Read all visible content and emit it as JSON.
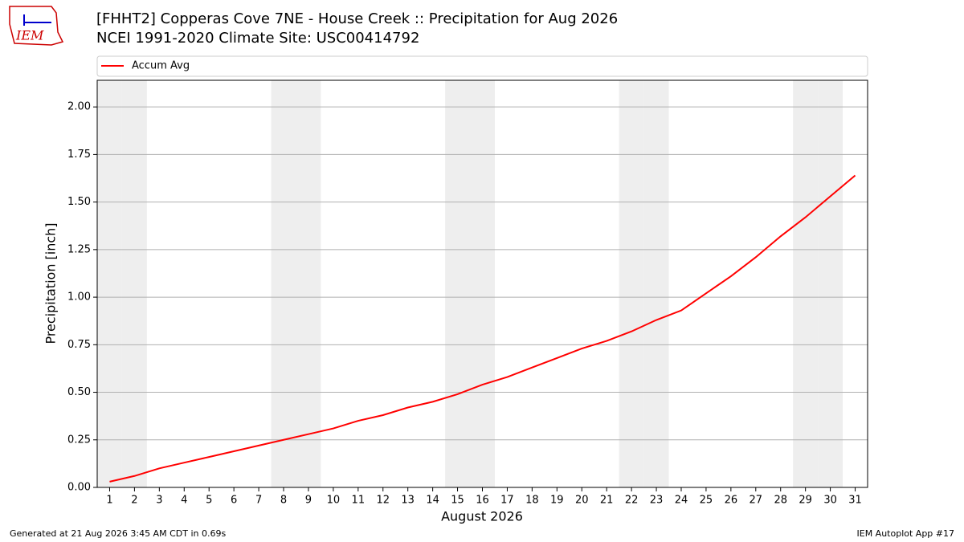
{
  "logo_text": "IEM",
  "footer_left": "Generated at 21 Aug 2026 3:45 AM CDT in 0.69s",
  "footer_right": "IEM Autoplot App #17",
  "chart_data": {
    "type": "line",
    "title": "[FHHT2] Copperas Cove 7NE - House Creek :: Precipitation for Aug 2026",
    "subtitle": "NCEI 1991-2020 Climate Site: USC00414792",
    "xlabel": "August 2026",
    "ylabel": "Precipitation [inch]",
    "x": [
      1,
      2,
      3,
      4,
      5,
      6,
      7,
      8,
      9,
      10,
      11,
      12,
      13,
      14,
      15,
      16,
      17,
      18,
      19,
      20,
      21,
      22,
      23,
      24,
      25,
      26,
      27,
      28,
      29,
      30,
      31
    ],
    "series": [
      {
        "name": "Accum Avg",
        "color": "#ff0000",
        "values": [
          0.03,
          0.06,
          0.1,
          0.13,
          0.16,
          0.19,
          0.22,
          0.25,
          0.28,
          0.31,
          0.35,
          0.38,
          0.42,
          0.45,
          0.49,
          0.54,
          0.58,
          0.63,
          0.68,
          0.73,
          0.77,
          0.82,
          0.88,
          0.93,
          1.02,
          1.11,
          1.21,
          1.32,
          1.42,
          1.53,
          1.64
        ]
      }
    ],
    "shaded_days": [
      1,
      2,
      8,
      9,
      15,
      16,
      22,
      23,
      29,
      30
    ],
    "shade_color": "#eeeeee",
    "xlim": [
      0.5,
      31.5
    ],
    "xticks": [
      1,
      2,
      3,
      4,
      5,
      6,
      7,
      8,
      9,
      10,
      11,
      12,
      13,
      14,
      15,
      16,
      17,
      18,
      19,
      20,
      21,
      22,
      23,
      24,
      25,
      26,
      27,
      28,
      29,
      30,
      31
    ],
    "ylim": [
      0,
      2.14
    ],
    "yticks": [
      {
        "value": 0,
        "label": "0.00"
      },
      {
        "value": 0.25,
        "label": "0.25"
      },
      {
        "value": 0.5,
        "label": "0.50"
      },
      {
        "value": 0.75,
        "label": "0.75"
      },
      {
        "value": 1,
        "label": "1.00"
      },
      {
        "value": 1.25,
        "label": "1.25"
      },
      {
        "value": 1.5,
        "label": "1.50"
      },
      {
        "value": 1.75,
        "label": "1.75"
      },
      {
        "value": 2,
        "label": "2.00"
      }
    ],
    "grid": true,
    "legend": "top"
  }
}
